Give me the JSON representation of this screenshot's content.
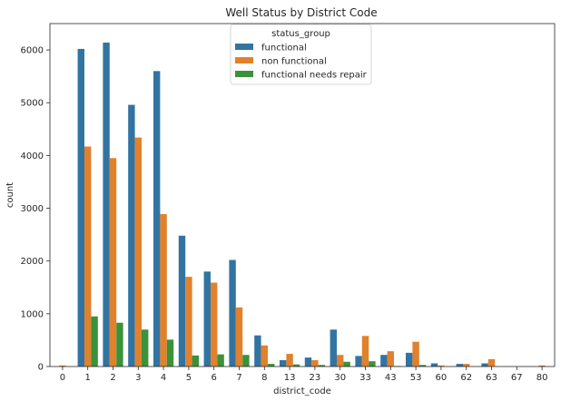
{
  "chart_data": {
    "type": "bar",
    "title": "Well Status by District Code",
    "xlabel": "district_code",
    "ylabel": "count",
    "ylim": [
      0,
      6500
    ],
    "yticks": [
      0,
      1000,
      2000,
      3000,
      4000,
      5000,
      6000
    ],
    "grid": false,
    "legend": {
      "title": "status_group",
      "placement": "upper-center"
    },
    "categories": [
      "0",
      "1",
      "2",
      "3",
      "4",
      "5",
      "6",
      "7",
      "8",
      "13",
      "23",
      "30",
      "33",
      "43",
      "53",
      "60",
      "62",
      "63",
      "67",
      "80"
    ],
    "series": [
      {
        "name": "functional",
        "color": "#3274a1",
        "values": [
          0,
          6020,
          6140,
          4960,
          5600,
          2480,
          1800,
          2020,
          590,
          120,
          170,
          700,
          200,
          220,
          260,
          60,
          50,
          60,
          0,
          0
        ]
      },
      {
        "name": "non functional",
        "color": "#e1812c",
        "values": [
          20,
          4170,
          3950,
          4340,
          2890,
          1700,
          1590,
          1120,
          400,
          240,
          120,
          220,
          580,
          290,
          470,
          20,
          50,
          140,
          0,
          20
        ]
      },
      {
        "name": "functional needs repair",
        "color": "#3a923a",
        "values": [
          0,
          950,
          830,
          700,
          510,
          210,
          230,
          220,
          50,
          40,
          30,
          90,
          100,
          10,
          30,
          0,
          0,
          0,
          0,
          0
        ]
      }
    ]
  }
}
